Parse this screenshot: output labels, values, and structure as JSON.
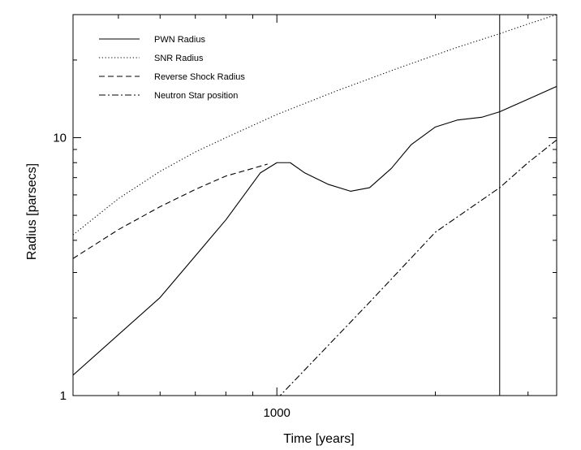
{
  "chart_data": {
    "type": "line",
    "xlabel": "Time [years]",
    "ylabel": "Radius [parsecs]",
    "xscale": "log",
    "yscale": "log",
    "xlim": [
      410,
      3400
    ],
    "ylim": [
      1,
      30
    ],
    "x_tick_labels": [
      {
        "value": 1000,
        "label": "1000"
      }
    ],
    "y_tick_labels": [
      {
        "value": 1,
        "label": "1"
      },
      {
        "value": 10,
        "label": "10"
      }
    ],
    "legend_position": "top-left",
    "grid": false,
    "vertical_marker_x": 2650,
    "series": [
      {
        "name": "PWN Radius",
        "style": "solid",
        "points": [
          [
            410,
            1.2
          ],
          [
            600,
            2.4
          ],
          [
            800,
            4.8
          ],
          [
            930,
            7.3
          ],
          [
            1000,
            8.0
          ],
          [
            1060,
            8.0
          ],
          [
            1130,
            7.3
          ],
          [
            1250,
            6.6
          ],
          [
            1380,
            6.2
          ],
          [
            1500,
            6.4
          ],
          [
            1650,
            7.6
          ],
          [
            1800,
            9.4
          ],
          [
            2000,
            11.0
          ],
          [
            2200,
            11.7
          ],
          [
            2450,
            12.0
          ],
          [
            2650,
            12.6
          ],
          [
            3000,
            14.1
          ],
          [
            3400,
            15.8
          ]
        ]
      },
      {
        "name": "SNR Radius",
        "style": "dotted",
        "points": [
          [
            410,
            4.2
          ],
          [
            500,
            5.8
          ],
          [
            600,
            7.4
          ],
          [
            700,
            8.8
          ],
          [
            800,
            10.0
          ],
          [
            1000,
            12.3
          ],
          [
            1300,
            15.2
          ],
          [
            1700,
            18.6
          ],
          [
            2200,
            22.4
          ],
          [
            2650,
            25.3
          ],
          [
            3000,
            27.6
          ],
          [
            3400,
            30.0
          ]
        ]
      },
      {
        "name": "Reverse Shock Radius",
        "style": "dashed",
        "points": [
          [
            410,
            3.4
          ],
          [
            500,
            4.4
          ],
          [
            600,
            5.4
          ],
          [
            700,
            6.3
          ],
          [
            800,
            7.1
          ],
          [
            900,
            7.6
          ],
          [
            960,
            7.9
          ]
        ]
      },
      {
        "name": "Neutron Star position",
        "style": "dashdot",
        "points": [
          [
            1000,
            0.97
          ],
          [
            1500,
            2.3
          ],
          [
            2000,
            4.3
          ],
          [
            2650,
            6.4
          ],
          [
            3000,
            8.0
          ],
          [
            3400,
            9.8
          ]
        ]
      }
    ]
  }
}
